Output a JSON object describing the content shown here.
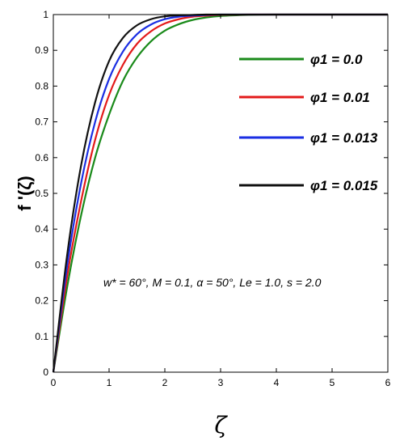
{
  "chart_data": {
    "type": "line",
    "xlabel": "ζ",
    "ylabel": "f '(ζ)",
    "xlim": [
      0,
      6
    ],
    "ylim": [
      0,
      1
    ],
    "xticks": [
      "0",
      "1",
      "2",
      "3",
      "4",
      "5",
      "6"
    ],
    "yticks": [
      "0",
      "0.1",
      "0.2",
      "0.3",
      "0.4",
      "0.5",
      "0.6",
      "0.7",
      "0.8",
      "0.9",
      "1"
    ],
    "grid": false,
    "legend_position": "top-right",
    "annotation": "w* = 60°, M = 0.1, α = 50°, Le = 1.0, s = 2.0",
    "x": [
      0,
      0.25,
      0.5,
      0.75,
      1.0,
      1.25,
      1.5,
      1.75,
      2.0,
      2.25,
      2.5,
      2.75,
      3.0,
      3.5,
      4.0,
      5.0,
      6.0
    ],
    "series": [
      {
        "name": "φ1 = 0.0",
        "color": "#1a8a1a",
        "values": [
          0.0,
          0.24,
          0.44,
          0.6,
          0.72,
          0.815,
          0.88,
          0.925,
          0.955,
          0.973,
          0.985,
          0.992,
          0.996,
          0.999,
          1.0,
          1.0,
          1.0
        ]
      },
      {
        "name": "φ1 = 0.01",
        "color": "#e31a1a",
        "values": [
          0.0,
          0.27,
          0.48,
          0.65,
          0.775,
          0.86,
          0.918,
          0.953,
          0.975,
          0.987,
          0.994,
          0.997,
          0.999,
          1.0,
          1.0,
          1.0,
          1.0
        ]
      },
      {
        "name": "φ1 = 0.013",
        "color": "#1a2ee3",
        "values": [
          0.0,
          0.3,
          0.53,
          0.7,
          0.82,
          0.897,
          0.945,
          0.972,
          0.987,
          0.994,
          0.997,
          0.999,
          1.0,
          1.0,
          1.0,
          1.0,
          1.0
        ]
      },
      {
        "name": "φ1 = 0.015",
        "color": "#111111",
        "values": [
          0.0,
          0.33,
          0.58,
          0.755,
          0.87,
          0.935,
          0.97,
          0.987,
          0.995,
          0.998,
          0.999,
          1.0,
          1.0,
          1.0,
          1.0,
          1.0,
          1.0
        ]
      }
    ]
  }
}
